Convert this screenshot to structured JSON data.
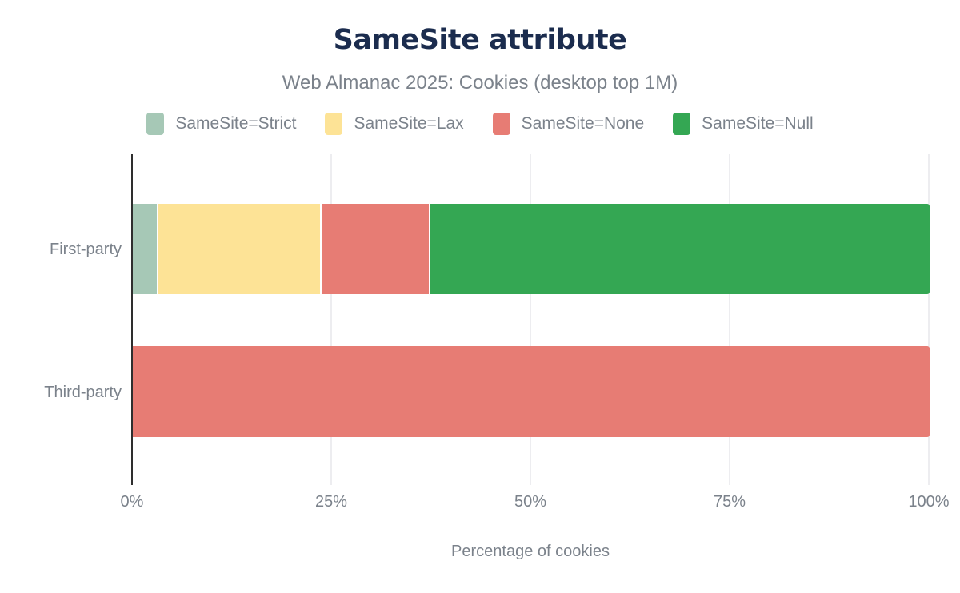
{
  "chart_data": {
    "type": "bar",
    "orientation": "horizontal",
    "stacked": true,
    "title": "SameSite attribute",
    "subtitle": "Web Almanac 2025: Cookies (desktop top 1M)",
    "xlabel": "Percentage of cookies",
    "categories": [
      "First-party",
      "Third-party"
    ],
    "series": [
      {
        "name": "SameSite=Strict",
        "color": "#a6c8b6",
        "values": [
          3.2,
          0
        ]
      },
      {
        "name": "SameSite=Lax",
        "color": "#fde396",
        "values": [
          20.5,
          0
        ]
      },
      {
        "name": "SameSite=None",
        "color": "#e77c74",
        "values": [
          13.7,
          100
        ]
      },
      {
        "name": "SameSite=Null",
        "color": "#34a753",
        "values": [
          62.6,
          0
        ]
      }
    ],
    "xlim": [
      0,
      100
    ],
    "x_ticks": [
      "0%",
      "25%",
      "50%",
      "75%",
      "100%"
    ],
    "grid": "vertical-only",
    "legend_position": "top"
  },
  "colors": {
    "title_text": "#1b2c4e",
    "muted_text": "#7b828b",
    "axis_line": "#2e2e2e",
    "gridline": "#ededf0",
    "background": "#ffffff"
  }
}
